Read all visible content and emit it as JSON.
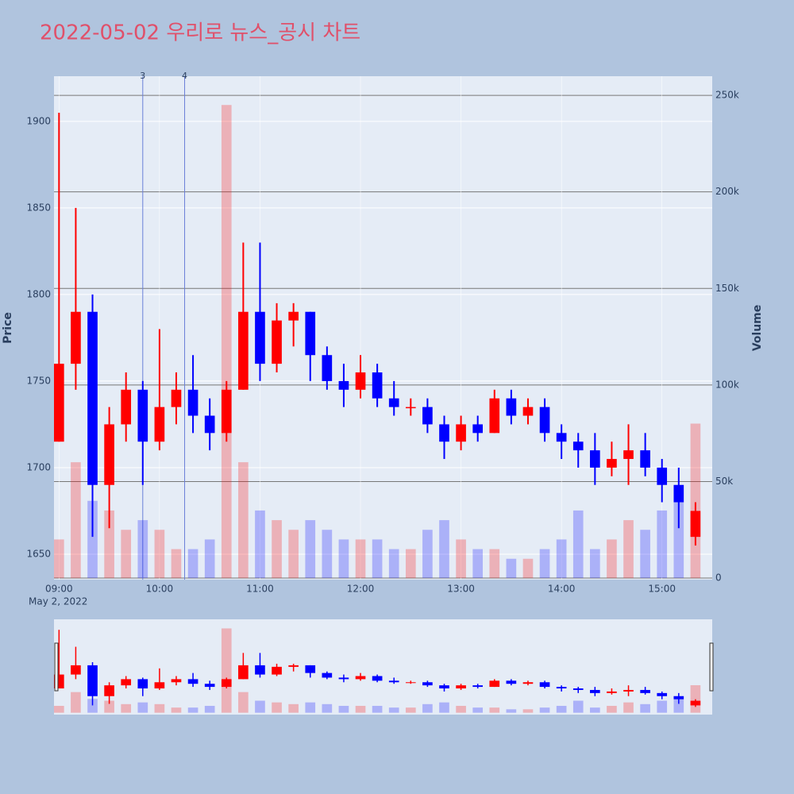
{
  "chart_data": {
    "type": "candlestick",
    "title": "2022-05-02 우리로 뉴스_공시 차트",
    "y_label": "Price",
    "y2_label": "Volume",
    "x_date_label": "May 2, 2022",
    "increasing_color": "#ff0000",
    "decreasing_color": "#0000ff",
    "x": [
      "09:00",
      "09:10",
      "09:20",
      "09:30",
      "09:40",
      "09:50",
      "10:00",
      "10:10",
      "10:20",
      "10:30",
      "10:40",
      "10:50",
      "11:00",
      "11:10",
      "11:20",
      "11:30",
      "11:40",
      "11:50",
      "12:00",
      "12:10",
      "12:20",
      "12:30",
      "12:40",
      "12:50",
      "13:00",
      "13:10",
      "13:20",
      "13:30",
      "13:40",
      "13:50",
      "14:00",
      "14:10",
      "14:20",
      "14:30",
      "14:40",
      "14:50",
      "15:00",
      "15:10",
      "15:20"
    ],
    "open": [
      1715,
      1760,
      1790,
      1690,
      1725,
      1745,
      1715,
      1735,
      1745,
      1730,
      1720,
      1745,
      1790,
      1760,
      1785,
      1790,
      1765,
      1750,
      1745,
      1755,
      1740,
      1735,
      1735,
      1725,
      1715,
      1725,
      1720,
      1740,
      1730,
      1735,
      1720,
      1715,
      1710,
      1700,
      1705,
      1710,
      1700,
      1690,
      1660
    ],
    "high": [
      1905,
      1850,
      1800,
      1735,
      1755,
      1750,
      1780,
      1755,
      1765,
      1740,
      1750,
      1830,
      1830,
      1795,
      1795,
      1790,
      1770,
      1760,
      1765,
      1760,
      1750,
      1740,
      1740,
      1730,
      1730,
      1730,
      1745,
      1745,
      1740,
      1740,
      1725,
      1720,
      1720,
      1715,
      1725,
      1720,
      1705,
      1700,
      1680
    ],
    "low": [
      1715,
      1745,
      1660,
      1665,
      1715,
      1690,
      1710,
      1725,
      1720,
      1710,
      1715,
      1745,
      1750,
      1755,
      1770,
      1750,
      1745,
      1735,
      1740,
      1735,
      1730,
      1730,
      1720,
      1705,
      1710,
      1715,
      1720,
      1725,
      1725,
      1715,
      1705,
      1700,
      1690,
      1695,
      1690,
      1695,
      1680,
      1665,
      1655
    ],
    "close": [
      1760,
      1790,
      1690,
      1725,
      1745,
      1715,
      1735,
      1745,
      1730,
      1720,
      1745,
      1790,
      1760,
      1785,
      1790,
      1765,
      1750,
      1745,
      1755,
      1740,
      1735,
      1735,
      1725,
      1715,
      1725,
      1720,
      1740,
      1730,
      1735,
      1720,
      1715,
      1710,
      1700,
      1705,
      1710,
      1700,
      1690,
      1680,
      1675
    ],
    "volume": [
      20000,
      60000,
      40000,
      35000,
      25000,
      30000,
      25000,
      15000,
      15000,
      20000,
      245000,
      60000,
      35000,
      30000,
      25000,
      30000,
      25000,
      20000,
      20000,
      20000,
      15000,
      15000,
      25000,
      30000,
      20000,
      15000,
      15000,
      10000,
      10000,
      15000,
      20000,
      35000,
      15000,
      20000,
      30000,
      25000,
      35000,
      40000,
      80000
    ],
    "xlim": [
      "08:57",
      "15:30"
    ],
    "xticks": [
      "09:00",
      "10:00",
      "11:00",
      "12:00",
      "13:00",
      "14:00",
      "15:00"
    ],
    "ylim": [
      1635.3,
      1926.1
    ],
    "yticks": [
      1650,
      1700,
      1750,
      1800,
      1850,
      1900
    ],
    "y2lim": [
      -800,
      259900
    ],
    "y2ticks": [
      0,
      {
        "value": 50000,
        "label": "50k"
      },
      {
        "value": 100000,
        "label": "100k"
      },
      {
        "value": 150000,
        "label": "150k"
      },
      {
        "value": 200000,
        "label": "200k"
      },
      {
        "value": 250000,
        "label": "250k"
      }
    ],
    "annotations": [
      {
        "x": "09:50",
        "text": "3"
      },
      {
        "x": "10:15",
        "text": "4"
      }
    ],
    "grid": true
  }
}
